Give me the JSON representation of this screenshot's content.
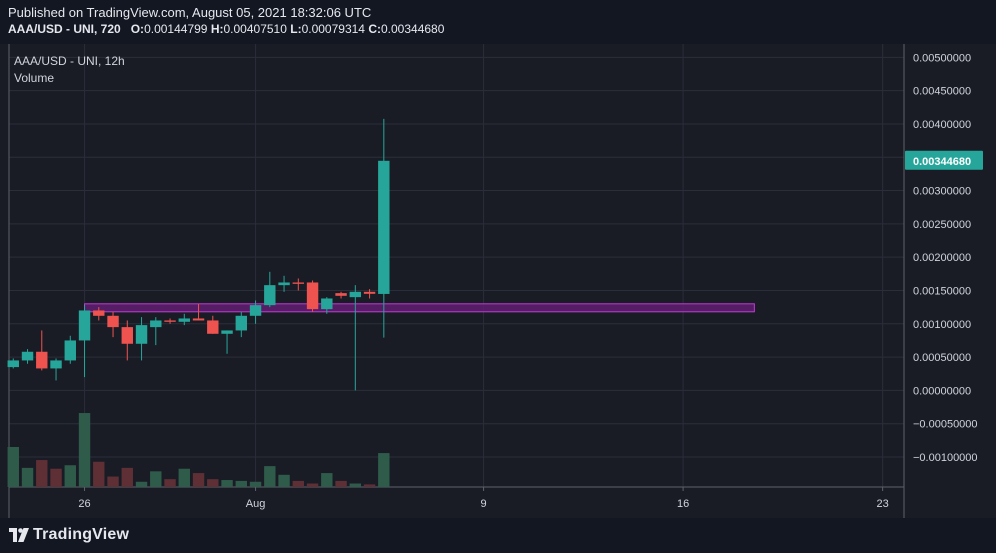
{
  "header": {
    "published": "Published on TradingView.com, August 05, 2021 18:32:06 UTC",
    "symbol_line": "AAA/USD - UNI, 720",
    "open_label": "O:",
    "open": "0.00144799",
    "high_label": "H:",
    "high": "0.00407510",
    "low_label": "L:",
    "low": "0.00079314",
    "close_label": "C:",
    "close": "0.00344680"
  },
  "legend": {
    "title": "AAA/USD - UNI, 12h",
    "volume": "Volume"
  },
  "brand": {
    "name": "TradingView",
    "logo_icon": "tradingview-logo-icon"
  },
  "colors": {
    "background": "#1a1c25",
    "grid": "#2a2e39",
    "up": "#26a69a",
    "down": "#ef5350",
    "volume_up": "#2f5b4a",
    "volume_down": "#5e2f35",
    "zone_fill": "#6a1d7a",
    "zone_border": "#c13bd6",
    "price_badge": "#26a69a"
  },
  "chart_data": {
    "type": "candlestick",
    "x_ticks": [
      {
        "label": "26",
        "x": 0
      },
      {
        "label": "Aug",
        "x": 12
      },
      {
        "label": "9",
        "x": 28
      },
      {
        "label": "16",
        "x": 42
      },
      {
        "label": "23",
        "x": 56
      }
    ],
    "xlim": [
      -5.3,
      57.5
    ],
    "ylim": [
      -0.00145,
      0.0052
    ],
    "y_ticks": [
      0.005,
      0.0045,
      0.004,
      0.0035,
      0.003,
      0.0025,
      0.002,
      0.0015,
      0.001,
      0.0005,
      0.0,
      -0.0005,
      -0.001
    ],
    "y_tick_labels": [
      "0.00500000",
      "0.00450000",
      "0.00400000",
      "0.00350000",
      "0.00300000",
      "0.00250000",
      "0.00200000",
      "0.00150000",
      "0.00100000",
      "0.00050000",
      "0.00000000",
      "−0.00050000",
      "−0.00100000"
    ],
    "last_price_label": "0.00344680",
    "last_price": 0.0034468,
    "candles": [
      {
        "x": -5,
        "o": 0.00035,
        "h": 0.00048,
        "l": 0.00033,
        "c": 0.00045
      },
      {
        "x": -4,
        "o": 0.00045,
        "h": 0.00062,
        "l": 0.0004,
        "c": 0.00058
      },
      {
        "x": -3,
        "o": 0.00058,
        "h": 0.0009,
        "l": 0.0003,
        "c": 0.00033
      },
      {
        "x": -2,
        "o": 0.00033,
        "h": 0.00048,
        "l": 0.00015,
        "c": 0.00045
      },
      {
        "x": -1,
        "o": 0.00045,
        "h": 0.00082,
        "l": 0.0004,
        "c": 0.00075
      },
      {
        "x": 0,
        "o": 0.00075,
        "h": 0.00128,
        "l": 0.0002,
        "c": 0.0012
      },
      {
        "x": 1,
        "o": 0.0012,
        "h": 0.00125,
        "l": 0.00105,
        "c": 0.00112
      },
      {
        "x": 2,
        "o": 0.00112,
        "h": 0.00118,
        "l": 0.0008,
        "c": 0.00095
      },
      {
        "x": 3,
        "o": 0.00095,
        "h": 0.00105,
        "l": 0.00045,
        "c": 0.0007
      },
      {
        "x": 4,
        "o": 0.0007,
        "h": 0.0011,
        "l": 0.00045,
        "c": 0.00098
      },
      {
        "x": 5,
        "o": 0.00095,
        "h": 0.0011,
        "l": 0.00068,
        "c": 0.00105
      },
      {
        "x": 6,
        "o": 0.00105,
        "h": 0.00108,
        "l": 0.001,
        "c": 0.00103
      },
      {
        "x": 7,
        "o": 0.00103,
        "h": 0.00115,
        "l": 0.00098,
        "c": 0.00108
      },
      {
        "x": 8,
        "o": 0.00108,
        "h": 0.0013,
        "l": 0.00105,
        "c": 0.00105
      },
      {
        "x": 9,
        "o": 0.00105,
        "h": 0.00112,
        "l": 0.00085,
        "c": 0.00085
      },
      {
        "x": 10,
        "o": 0.00085,
        "h": 0.0009,
        "l": 0.00055,
        "c": 0.0009
      },
      {
        "x": 11,
        "o": 0.0009,
        "h": 0.00118,
        "l": 0.0008,
        "c": 0.00112
      },
      {
        "x": 12,
        "o": 0.00112,
        "h": 0.00135,
        "l": 0.001,
        "c": 0.00128
      },
      {
        "x": 13,
        "o": 0.00128,
        "h": 0.00178,
        "l": 0.00125,
        "c": 0.00158
      },
      {
        "x": 14,
        "o": 0.00158,
        "h": 0.00172,
        "l": 0.00148,
        "c": 0.00162
      },
      {
        "x": 15,
        "o": 0.00162,
        "h": 0.00168,
        "l": 0.0015,
        "c": 0.0016
      },
      {
        "x": 16,
        "o": 0.00162,
        "h": 0.00165,
        "l": 0.00118,
        "c": 0.00122
      },
      {
        "x": 17,
        "o": 0.00122,
        "h": 0.0014,
        "l": 0.00115,
        "c": 0.00138
      },
      {
        "x": 18,
        "o": 0.00146,
        "h": 0.00148,
        "l": 0.00138,
        "c": 0.00142
      },
      {
        "x": 19,
        "o": 0.0014,
        "h": 0.00158,
        "l": 0.0,
        "c": 0.00148
      },
      {
        "x": 20,
        "o": 0.00148,
        "h": 0.00152,
        "l": 0.00138,
        "c": 0.00145
      },
      {
        "x": 21,
        "o": 0.00144799,
        "h": 0.0040751,
        "l": 0.00079314,
        "c": 0.0034468
      }
    ],
    "volume": [
      {
        "x": -5,
        "v": 0.46,
        "up": true
      },
      {
        "x": -4,
        "v": 0.22,
        "up": true
      },
      {
        "x": -3,
        "v": 0.31,
        "up": false
      },
      {
        "x": -2,
        "v": 0.21,
        "up": false
      },
      {
        "x": -1,
        "v": 0.25,
        "up": true
      },
      {
        "x": 0,
        "v": 0.85,
        "up": true
      },
      {
        "x": 1,
        "v": 0.29,
        "up": false
      },
      {
        "x": 2,
        "v": 0.12,
        "up": false
      },
      {
        "x": 3,
        "v": 0.22,
        "up": false
      },
      {
        "x": 4,
        "v": 0.06,
        "up": true
      },
      {
        "x": 5,
        "v": 0.18,
        "up": true
      },
      {
        "x": 6,
        "v": 0.09,
        "up": false
      },
      {
        "x": 7,
        "v": 0.21,
        "up": true
      },
      {
        "x": 8,
        "v": 0.16,
        "up": false
      },
      {
        "x": 9,
        "v": 0.09,
        "up": false
      },
      {
        "x": 10,
        "v": 0.08,
        "up": true
      },
      {
        "x": 11,
        "v": 0.07,
        "up": true
      },
      {
        "x": 12,
        "v": 0.06,
        "up": true
      },
      {
        "x": 13,
        "v": 0.24,
        "up": true
      },
      {
        "x": 14,
        "v": 0.14,
        "up": true
      },
      {
        "x": 15,
        "v": 0.07,
        "up": false
      },
      {
        "x": 16,
        "v": 0.04,
        "up": false
      },
      {
        "x": 17,
        "v": 0.16,
        "up": true
      },
      {
        "x": 18,
        "v": 0.07,
        "up": false
      },
      {
        "x": 19,
        "v": 0.04,
        "up": true
      },
      {
        "x": 20,
        "v": 0.03,
        "up": false
      },
      {
        "x": 21,
        "v": 0.39,
        "up": true
      }
    ],
    "zones": [
      {
        "x_start": 0,
        "x_end": 47,
        "y_low": 0.00118,
        "y_high": 0.0013
      }
    ]
  }
}
